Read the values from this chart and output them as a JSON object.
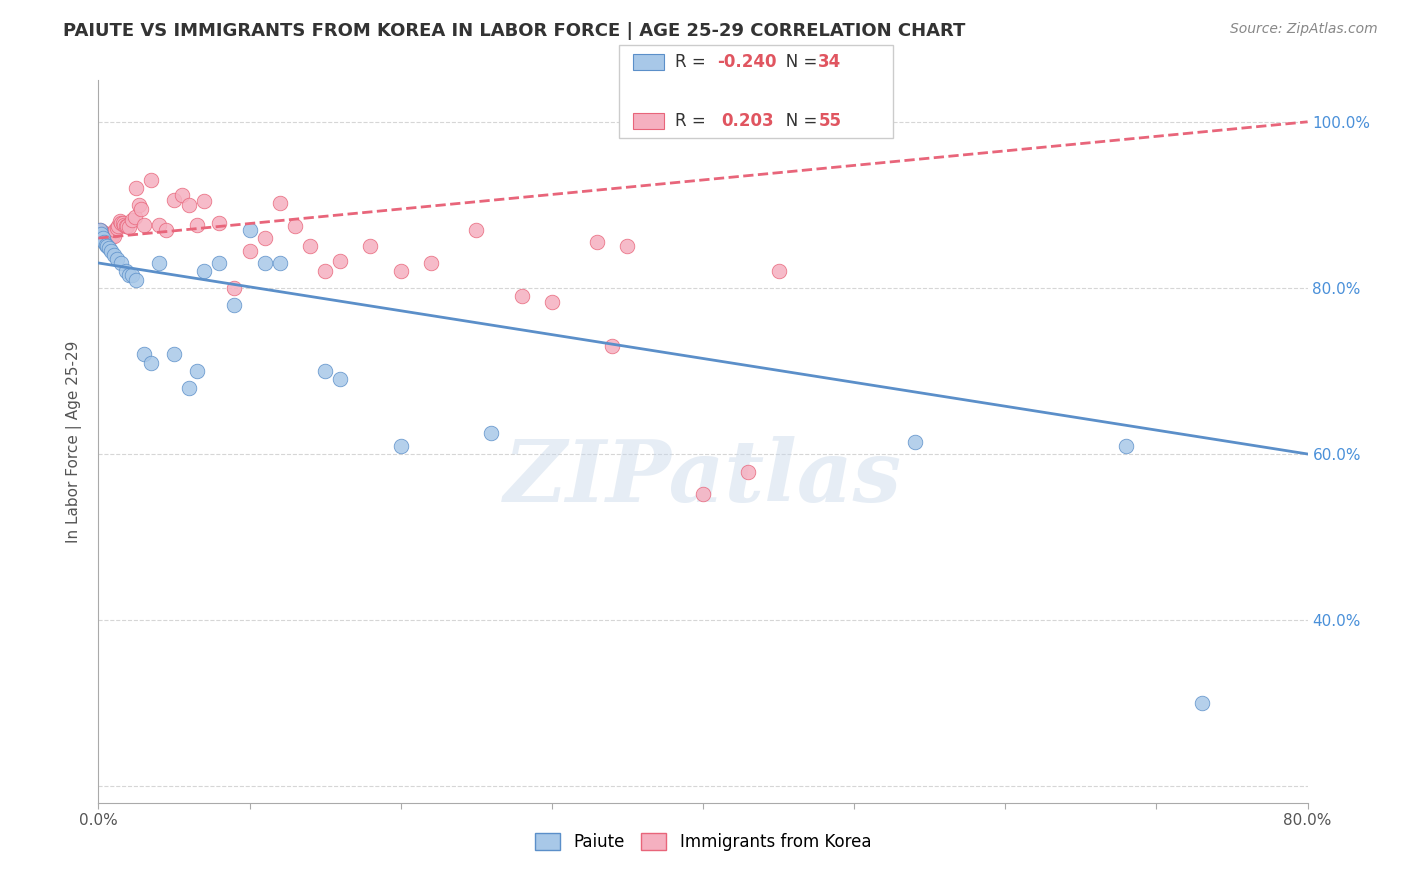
{
  "title": "PAIUTE VS IMMIGRANTS FROM KOREA IN LABOR FORCE | AGE 25-29 CORRELATION CHART",
  "source": "Source: ZipAtlas.com",
  "ylabel": "In Labor Force | Age 25-29",
  "x_min": 0.0,
  "x_max": 0.8,
  "y_min": 0.18,
  "y_max": 1.05,
  "x_ticks": [
    0.0,
    0.1,
    0.2,
    0.3,
    0.4,
    0.5,
    0.6,
    0.7,
    0.8
  ],
  "x_tick_labels": [
    "0.0%",
    "",
    "",
    "",
    "",
    "",
    "",
    "",
    "80.0%"
  ],
  "y_ticks": [
    0.2,
    0.4,
    0.6,
    0.8,
    1.0
  ],
  "y_tick_labels_right": [
    "",
    "40.0%",
    "60.0%",
    "80.0%",
    "100.0%"
  ],
  "grid_color": "#cccccc",
  "bg_color": "#ffffff",
  "watermark": "ZIPatlas",
  "legend_R_blue": "-0.240",
  "legend_N_blue": "34",
  "legend_R_pink": "0.203",
  "legend_N_pink": "55",
  "blue_color": "#a8c8e8",
  "pink_color": "#f5b0c0",
  "blue_line_color": "#5b8fc9",
  "pink_line_color": "#e8657a",
  "paiute_x": [
    0.001,
    0.002,
    0.003,
    0.004,
    0.005,
    0.006,
    0.007,
    0.008,
    0.01,
    0.012,
    0.015,
    0.018,
    0.02,
    0.022,
    0.025,
    0.03,
    0.035,
    0.04,
    0.05,
    0.06,
    0.065,
    0.07,
    0.08,
    0.09,
    0.1,
    0.11,
    0.12,
    0.15,
    0.16,
    0.2,
    0.26,
    0.54,
    0.68,
    0.73
  ],
  "paiute_y": [
    0.87,
    0.865,
    0.86,
    0.855,
    0.852,
    0.85,
    0.848,
    0.845,
    0.84,
    0.835,
    0.83,
    0.82,
    0.815,
    0.815,
    0.81,
    0.72,
    0.71,
    0.83,
    0.72,
    0.68,
    0.7,
    0.82,
    0.83,
    0.78,
    0.87,
    0.83,
    0.83,
    0.7,
    0.69,
    0.61,
    0.625,
    0.615,
    0.61,
    0.3
  ],
  "korea_x": [
    0.001,
    0.002,
    0.003,
    0.004,
    0.005,
    0.006,
    0.007,
    0.008,
    0.009,
    0.01,
    0.011,
    0.012,
    0.013,
    0.014,
    0.015,
    0.016,
    0.017,
    0.018,
    0.019,
    0.02,
    0.022,
    0.024,
    0.025,
    0.027,
    0.028,
    0.03,
    0.035,
    0.04,
    0.045,
    0.05,
    0.055,
    0.06,
    0.065,
    0.07,
    0.08,
    0.09,
    0.1,
    0.11,
    0.12,
    0.13,
    0.14,
    0.15,
    0.16,
    0.18,
    0.2,
    0.22,
    0.25,
    0.28,
    0.3,
    0.33,
    0.34,
    0.35,
    0.4,
    0.43,
    0.45
  ],
  "korea_y": [
    0.87,
    0.868,
    0.866,
    0.866,
    0.865,
    0.865,
    0.864,
    0.863,
    0.863,
    0.863,
    0.87,
    0.872,
    0.875,
    0.88,
    0.878,
    0.878,
    0.876,
    0.875,
    0.874,
    0.873,
    0.882,
    0.885,
    0.92,
    0.9,
    0.895,
    0.876,
    0.93,
    0.876,
    0.87,
    0.906,
    0.912,
    0.9,
    0.876,
    0.905,
    0.878,
    0.8,
    0.845,
    0.86,
    0.902,
    0.875,
    0.85,
    0.82,
    0.832,
    0.85,
    0.82,
    0.83,
    0.87,
    0.79,
    0.783,
    0.855,
    0.73,
    0.85,
    0.552,
    0.578,
    0.82
  ]
}
